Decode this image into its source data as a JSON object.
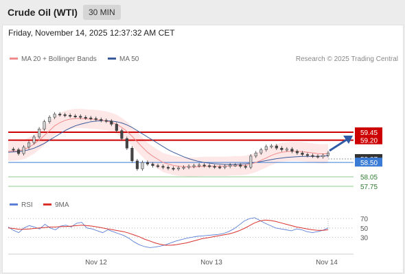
{
  "header": {
    "title": "Crude Oil (WTI)",
    "timeframe": "30 MIN"
  },
  "timestamp": "Friday, November 14, 2025 12:37:32 AM CET",
  "credit": "Research © 2025 Trading Central",
  "colors": {
    "ma20": "#f28b8b",
    "ma50": "#3a5a9c",
    "bands": "#fbd3d3",
    "resistance": "#cc0000",
    "support": "#3a7bd5",
    "pivot": "#333333",
    "target_line": "#8cc98c",
    "rsi": "#5b7fd6",
    "rsi_ma": "#d9302c",
    "arrow": "#2e5aa8",
    "candle_up": "#cccccc",
    "candle_down": "#444444"
  },
  "chart_data": [
    {
      "type": "line",
      "subtype": "candlestick",
      "legend": [
        {
          "name": "MA 20 + Bollinger Bands"
        },
        {
          "name": "MA 50"
        }
      ],
      "x_ticks": [
        "Nov 12",
        "Nov 13",
        "Nov 14"
      ],
      "ylim": [
        57.6,
        59.6
      ],
      "levels": [
        {
          "label": "59.45",
          "value": 59.45,
          "kind": "resistance"
        },
        {
          "label": "59.20",
          "value": 59.2,
          "kind": "resistance"
        },
        {
          "label": "58.87",
          "value": 58.87,
          "kind": "pivot"
        },
        {
          "label": "58.50",
          "value": 58.5,
          "kind": "support"
        },
        {
          "label": "58.05",
          "value": 58.05,
          "kind": "target"
        },
        {
          "label": "57.75",
          "value": 57.75,
          "kind": "target"
        }
      ],
      "price_path": [
        58.92,
        58.9,
        58.78,
        58.98,
        59.12,
        59.3,
        59.55,
        59.78,
        59.92,
        60.02,
        60.0,
        59.98,
        59.96,
        59.95,
        59.92,
        59.9,
        59.88,
        59.85,
        59.82,
        59.8,
        59.7,
        59.5,
        59.25,
        58.95,
        58.55,
        58.3,
        58.5,
        58.45,
        58.4,
        58.38,
        58.35,
        58.32,
        58.3,
        58.33,
        58.35,
        58.38,
        58.4,
        58.42,
        58.4,
        58.38,
        58.36,
        58.35,
        58.38,
        58.42,
        58.42,
        58.38,
        58.35,
        58.7,
        58.8,
        58.9,
        59.0,
        59.02,
        58.95,
        58.9,
        58.92,
        58.85,
        58.8,
        58.75,
        58.72,
        58.7,
        58.68,
        58.72,
        58.8
      ],
      "ma20": [
        58.85,
        58.86,
        58.87,
        58.9,
        58.98,
        59.08,
        59.2,
        59.35,
        59.5,
        59.65,
        59.75,
        59.82,
        59.86,
        59.88,
        59.88,
        59.87,
        59.86,
        59.85,
        59.83,
        59.8,
        59.76,
        59.7,
        59.6,
        59.48,
        59.32,
        59.15,
        58.98,
        58.82,
        58.7,
        58.6,
        58.5,
        58.45,
        58.41,
        58.38,
        58.37,
        58.36,
        58.36,
        58.37,
        58.38,
        58.38,
        58.38,
        58.38,
        58.38,
        58.39,
        58.4,
        58.4,
        58.41,
        58.45,
        58.5,
        58.57,
        58.64,
        58.72,
        58.78,
        58.82,
        58.84,
        58.85,
        58.85,
        58.84,
        58.82,
        58.8,
        58.78,
        58.77,
        58.78
      ],
      "ma50": [
        58.82,
        58.83,
        58.84,
        58.86,
        58.9,
        58.95,
        59.02,
        59.1,
        59.2,
        59.3,
        59.4,
        59.5,
        59.58,
        59.65,
        59.7,
        59.74,
        59.78,
        59.8,
        59.81,
        59.81,
        59.8,
        59.78,
        59.74,
        59.68,
        59.6,
        59.5,
        59.4,
        59.3,
        59.2,
        59.1,
        59.0,
        58.9,
        58.82,
        58.75,
        58.68,
        58.62,
        58.57,
        58.53,
        58.5,
        58.48,
        58.46,
        58.45,
        58.44,
        58.44,
        58.44,
        58.45,
        58.46,
        58.48,
        58.5,
        58.53,
        58.56,
        58.59,
        58.62,
        58.64,
        58.66,
        58.67,
        58.68,
        58.69,
        58.69,
        58.69,
        58.69,
        58.7,
        58.71
      ]
    },
    {
      "type": "line",
      "legend": [
        {
          "name": "RSI"
        },
        {
          "name": "9MA"
        }
      ],
      "y_ticks": [
        70,
        50,
        30
      ],
      "ylim": [
        0,
        100
      ],
      "series": [
        {
          "name": "RSI",
          "values": [
            52,
            45,
            40,
            50,
            55,
            52,
            48,
            58,
            50,
            46,
            54,
            56,
            52,
            60,
            62,
            50,
            48,
            44,
            40,
            46,
            42,
            38,
            34,
            28,
            20,
            14,
            10,
            8,
            9,
            11,
            14,
            18,
            22,
            25,
            28,
            30,
            32,
            33,
            34,
            35,
            36,
            38,
            42,
            48,
            56,
            65,
            70,
            72,
            66,
            60,
            55,
            50,
            48,
            46,
            44,
            48,
            46,
            42,
            40,
            42,
            45,
            50
          ]
        },
        {
          "name": "9MA",
          "values": [
            50,
            49,
            47,
            47,
            48,
            49,
            50,
            51,
            52,
            52,
            53,
            53,
            54,
            55,
            56,
            55,
            54,
            52,
            50,
            48,
            46,
            44,
            42,
            39,
            35,
            31,
            26,
            22,
            18,
            15,
            13,
            13,
            14,
            16,
            18,
            21,
            24,
            27,
            29,
            31,
            33,
            35,
            37,
            40,
            44,
            49,
            55,
            61,
            65,
            67,
            66,
            64,
            61,
            58,
            55,
            52,
            50,
            48,
            46,
            45,
            45,
            46
          ]
        }
      ]
    }
  ]
}
